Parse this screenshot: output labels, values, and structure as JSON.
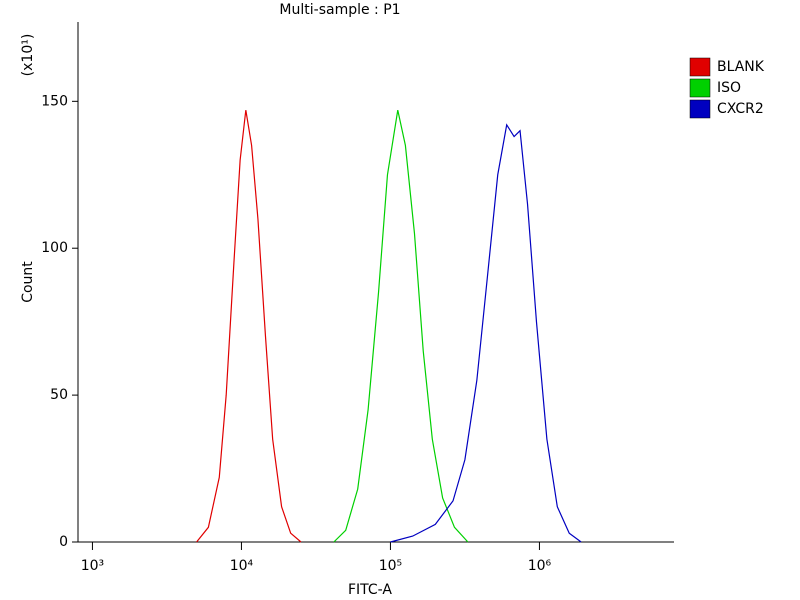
{
  "chart_data": {
    "type": "line",
    "title": "Multi-sample : P1",
    "x_label": "FITC-A",
    "y_label": "Count",
    "y_multiplier": "(x10¹)",
    "xscale": "log",
    "xlim": [
      800,
      8000000
    ],
    "ylim": [
      0,
      177
    ],
    "xticks": [
      {
        "value": 1000,
        "label": "10³"
      },
      {
        "value": 10000,
        "label": "10⁴"
      },
      {
        "value": 100000,
        "label": "10⁵"
      },
      {
        "value": 1000000,
        "label": "10⁶"
      }
    ],
    "yticks": [
      0,
      50,
      100,
      150
    ],
    "legend": "right",
    "series": [
      {
        "name": "BLANK",
        "color": "#e00000",
        "x": [
          5000,
          6000,
          7100,
          7900,
          8900,
          9800,
          10700,
          11700,
          12900,
          14500,
          16200,
          18600,
          21400,
          25100
        ],
        "values": [
          0,
          5,
          22,
          50,
          95,
          130,
          147,
          135,
          110,
          70,
          35,
          12,
          3,
          0
        ]
      },
      {
        "name": "ISO",
        "color": "#00d000",
        "x": [
          41700,
          50100,
          60300,
          70800,
          83200,
          95500,
          112000,
          126000,
          145000,
          166000,
          191000,
          224000,
          269000,
          331000
        ],
        "values": [
          0,
          4,
          18,
          45,
          85,
          125,
          147,
          135,
          105,
          65,
          35,
          15,
          5,
          0
        ]
      },
      {
        "name": "CXCR2",
        "color": "#0000c0",
        "x": [
          100000,
          141000,
          200000,
          263000,
          316000,
          380000,
          447000,
          525000,
          603000,
          676000,
          741000,
          832000,
          955000,
          1122000,
          1318000,
          1585000,
          1905000
        ],
        "values": [
          0,
          2,
          6,
          14,
          28,
          55,
          90,
          125,
          142,
          138,
          140,
          115,
          75,
          35,
          12,
          3,
          0
        ]
      }
    ]
  }
}
